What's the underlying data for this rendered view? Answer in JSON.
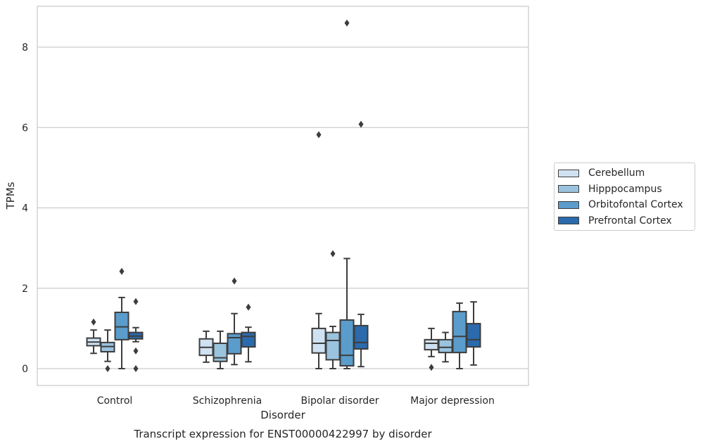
{
  "chart_data": {
    "type": "boxplot",
    "title": "Transcript expression for ENST00000422997 by disorder",
    "xlabel": "Disorder",
    "ylabel": "TPMs",
    "ylim": [
      -0.42,
      9.0
    ],
    "yticks": [
      0,
      2,
      4,
      6,
      8
    ],
    "grid": "horizontal",
    "legend_position": "right",
    "categories": [
      "Control",
      "Schizophrenia",
      "Bipolar disorder",
      "Major depression"
    ],
    "series": [
      {
        "name": "Cerebellum",
        "color": "#d0e1f2",
        "boxes": [
          {
            "whisker_low": 0.38,
            "q1": 0.57,
            "median": 0.66,
            "q3": 0.76,
            "whisker_high": 0.96,
            "outliers": [
              1.16
            ]
          },
          {
            "whisker_low": 0.16,
            "q1": 0.33,
            "median": 0.53,
            "q3": 0.74,
            "whisker_high": 0.93,
            "outliers": []
          },
          {
            "whisker_low": 0.0,
            "q1": 0.39,
            "median": 0.63,
            "q3": 1.0,
            "whisker_high": 1.37,
            "outliers": [
              5.82
            ]
          },
          {
            "whisker_low": 0.3,
            "q1": 0.47,
            "median": 0.63,
            "q3": 0.72,
            "whisker_high": 1.0,
            "outliers": [
              0.03
            ]
          }
        ]
      },
      {
        "name": "Hipppocampus",
        "color": "#9ac3de",
        "boxes": [
          {
            "whisker_low": 0.18,
            "q1": 0.42,
            "median": 0.55,
            "q3": 0.65,
            "whisker_high": 0.96,
            "outliers": [
              0.0
            ]
          },
          {
            "whisker_low": 0.0,
            "q1": 0.18,
            "median": 0.27,
            "q3": 0.63,
            "whisker_high": 0.93,
            "outliers": []
          },
          {
            "whisker_low": 0.0,
            "q1": 0.22,
            "median": 0.7,
            "q3": 0.9,
            "whisker_high": 1.05,
            "outliers": [
              2.86
            ]
          },
          {
            "whisker_low": 0.17,
            "q1": 0.4,
            "median": 0.53,
            "q3": 0.72,
            "whisker_high": 0.9,
            "outliers": []
          }
        ]
      },
      {
        "name": "Orbitofontal Cortex",
        "color": "#5a9ccb",
        "boxes": [
          {
            "whisker_low": 0.0,
            "q1": 0.72,
            "median": 1.04,
            "q3": 1.4,
            "whisker_high": 1.77,
            "outliers": [
              2.42
            ]
          },
          {
            "whisker_low": 0.1,
            "q1": 0.37,
            "median": 0.77,
            "q3": 0.87,
            "whisker_high": 1.37,
            "outliers": [
              2.18
            ]
          },
          {
            "whisker_low": 0.0,
            "q1": 0.07,
            "median": 0.33,
            "q3": 1.21,
            "whisker_high": 2.74,
            "outliers": [
              8.6
            ]
          },
          {
            "whisker_low": 0.0,
            "q1": 0.4,
            "median": 0.8,
            "q3": 1.42,
            "whisker_high": 1.63,
            "outliers": []
          }
        ]
      },
      {
        "name": "Prefrontal Cortex",
        "color": "#2b6aac",
        "boxes": [
          {
            "whisker_low": 0.67,
            "q1": 0.74,
            "median": 0.81,
            "q3": 0.9,
            "whisker_high": 1.02,
            "outliers": [
              1.67,
              0.44,
              0.0
            ]
          },
          {
            "whisker_low": 0.17,
            "q1": 0.54,
            "median": 0.8,
            "q3": 0.9,
            "whisker_high": 1.03,
            "outliers": [
              1.53
            ]
          },
          {
            "whisker_low": 0.05,
            "q1": 0.49,
            "median": 0.65,
            "q3": 1.07,
            "whisker_high": 1.35,
            "outliers": [
              6.08
            ]
          },
          {
            "whisker_low": 0.09,
            "q1": 0.54,
            "median": 0.72,
            "q3": 1.12,
            "whisker_high": 1.66,
            "outliers": []
          }
        ]
      }
    ]
  }
}
